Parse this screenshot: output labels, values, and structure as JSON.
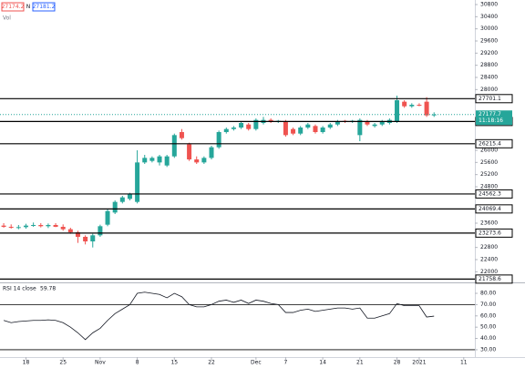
{
  "chart_data": [
    {
      "type": "candlestick",
      "bid": 27174.2,
      "ask_marker": "N",
      "ask": 27181.2,
      "volume_label": "Vol",
      "open": [
        23520,
        23480,
        23460,
        23470,
        23520,
        23540,
        23500,
        23540,
        23480,
        23400,
        23300,
        23150,
        23000,
        23200,
        23550,
        23950,
        24300,
        24400,
        24300,
        25600,
        25650,
        25600,
        25500,
        25800,
        26600,
        26200,
        25700,
        25600,
        25750,
        26100,
        26600,
        26700,
        26750,
        26850,
        26700,
        26900,
        27000,
        26950,
        26950,
        26700,
        26550,
        26750,
        26800,
        26600,
        26750,
        26850,
        26970,
        26950,
        26500,
        26950,
        26800,
        26850,
        26900,
        26950,
        27600,
        27450,
        27500,
        27600,
        27150
      ],
      "high": [
        23600,
        23560,
        23540,
        23580,
        23620,
        23600,
        23590,
        23600,
        23560,
        23450,
        23350,
        23200,
        23250,
        23550,
        24050,
        24350,
        24500,
        24600,
        26000,
        25850,
        25800,
        25850,
        25850,
        26550,
        26700,
        26250,
        25800,
        25800,
        26150,
        26650,
        26750,
        26800,
        26950,
        26900,
        27050,
        27100,
        27050,
        27000,
        27000,
        26750,
        26800,
        26900,
        26850,
        26800,
        26900,
        27000,
        27000,
        27000,
        27050,
        27000,
        26900,
        27000,
        27050,
        27800,
        27650,
        27550,
        27550,
        27750,
        27250
      ],
      "low": [
        23450,
        23420,
        23400,
        23420,
        23480,
        23460,
        23440,
        23470,
        23350,
        23250,
        22950,
        22900,
        22800,
        23150,
        23500,
        23900,
        24250,
        24350,
        24250,
        25550,
        25600,
        25500,
        25450,
        25750,
        26350,
        25650,
        25550,
        25550,
        25700,
        26050,
        26550,
        26650,
        26700,
        26650,
        26650,
        26850,
        26900,
        26900,
        26450,
        26500,
        26500,
        26700,
        26550,
        26550,
        26700,
        26800,
        26900,
        26900,
        26300,
        26800,
        26750,
        26800,
        26850,
        26900,
        27400,
        27400,
        27450,
        27100,
        27100
      ],
      "close": [
        23480,
        23460,
        23470,
        23520,
        23540,
        23500,
        23540,
        23480,
        23400,
        23300,
        23150,
        23000,
        23200,
        23500,
        24000,
        24300,
        24450,
        24550,
        25600,
        25750,
        25750,
        25800,
        25800,
        26500,
        26400,
        25700,
        25600,
        25750,
        26100,
        26600,
        26700,
        26750,
        26900,
        26700,
        27000,
        27000,
        26950,
        26970,
        26500,
        26550,
        26750,
        26850,
        26600,
        26750,
        26850,
        26950,
        26950,
        26970,
        27000,
        26850,
        26850,
        26950,
        27000,
        27650,
        27450,
        27500,
        27480,
        27150,
        27180
      ],
      "up_color": "#26a69a",
      "down_color": "#ef5350",
      "xlim": [
        -0.5,
        63.5
      ],
      "xticks": [
        {
          "value": 3,
          "label": "18"
        },
        {
          "value": 8,
          "label": "25"
        },
        {
          "value": 13,
          "label": "Nov"
        },
        {
          "value": 18,
          "label": "8"
        },
        {
          "value": 23,
          "label": "15"
        },
        {
          "value": 28,
          "label": "22"
        },
        {
          "value": 34,
          "label": "Dec"
        },
        {
          "value": 38,
          "label": "7"
        },
        {
          "value": 43,
          "label": "14"
        },
        {
          "value": 48,
          "label": "21"
        },
        {
          "value": 53,
          "label": "28"
        },
        {
          "value": 56,
          "label": "2021"
        },
        {
          "value": 62,
          "label": "11"
        }
      ],
      "ylim": [
        21650,
        30950
      ],
      "yticks": [
        22000,
        22400,
        22800,
        23600,
        24800,
        25200,
        25600,
        26000,
        28000,
        28400,
        28800,
        29200,
        29600,
        30000,
        30400,
        30800
      ],
      "hlines": [
        27701.1,
        26949.5,
        26215.4,
        24562.3,
        24069.4,
        23273.6,
        21758.6
      ],
      "last_price": 27177.7,
      "countdown": "11:18:16"
    },
    {
      "type": "line",
      "title": "RSI 14 close",
      "color": "#131722",
      "values": [
        56,
        54,
        55,
        55.5,
        56,
        56,
        56.5,
        56,
        54,
        50,
        45,
        39,
        45,
        49,
        56,
        62,
        66,
        70,
        80,
        81,
        80,
        79,
        76,
        80,
        77,
        70,
        68,
        68,
        70,
        73,
        74,
        72,
        74,
        71,
        74,
        73,
        71,
        70,
        63,
        63,
        65,
        66,
        64,
        65,
        66,
        67,
        67,
        66,
        67,
        58,
        58,
        60,
        62,
        71,
        69,
        69,
        69,
        59,
        59.78
      ],
      "ylim": [
        23.5,
        88.9
      ],
      "yticks": [
        {
          "value": 80,
          "label": "80.00"
        },
        {
          "value": 70,
          "label": "70.00"
        },
        {
          "value": 60,
          "label": "60.00"
        },
        {
          "value": 50,
          "label": "50.00"
        },
        {
          "value": 40,
          "label": "40.00"
        },
        {
          "value": 30,
          "label": "30.00"
        }
      ],
      "hlines": [
        70,
        30
      ]
    }
  ]
}
